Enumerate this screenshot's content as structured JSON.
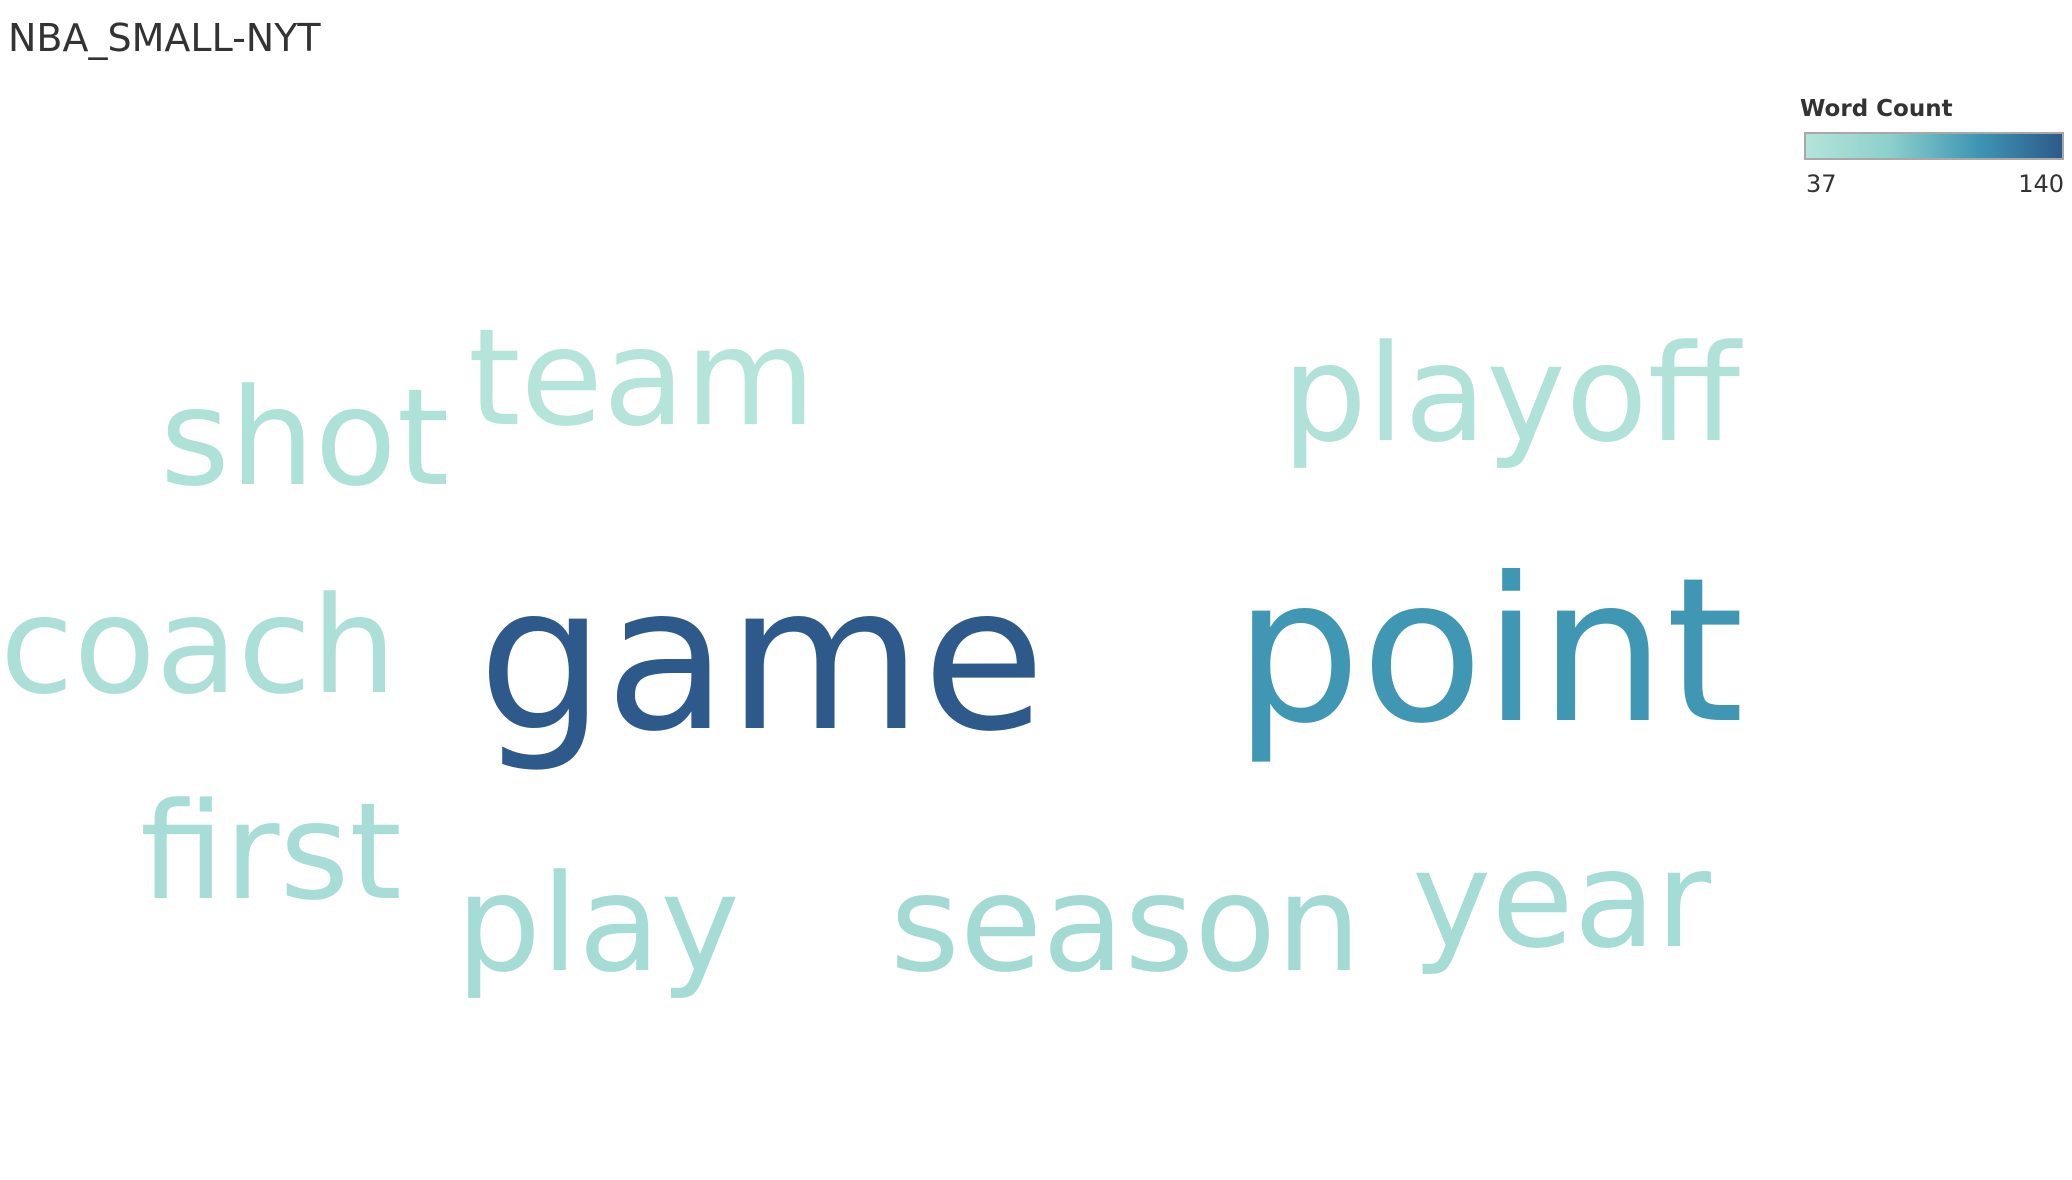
{
  "chart_data": {
    "type": "wordcloud",
    "title": "NBA_SMALL-NYT",
    "legend": {
      "title": "Word Count",
      "min": 37,
      "max": 140,
      "min_label": "37",
      "max_label": "140",
      "colors": [
        "#b4e4da",
        "#8ccfcc",
        "#3f96b4",
        "#2d5a8a"
      ],
      "placement": "top-right"
    },
    "words": [
      {
        "text": "game",
        "count": 140
      },
      {
        "text": "point",
        "count": 105
      },
      {
        "text": "playoff",
        "count": 40
      },
      {
        "text": "shot",
        "count": 42
      },
      {
        "text": "team",
        "count": 37
      },
      {
        "text": "coach",
        "count": 45
      },
      {
        "text": "first",
        "count": 48
      },
      {
        "text": "play",
        "count": 50
      },
      {
        "text": "season",
        "count": 52
      },
      {
        "text": "year",
        "count": 50
      }
    ]
  }
}
